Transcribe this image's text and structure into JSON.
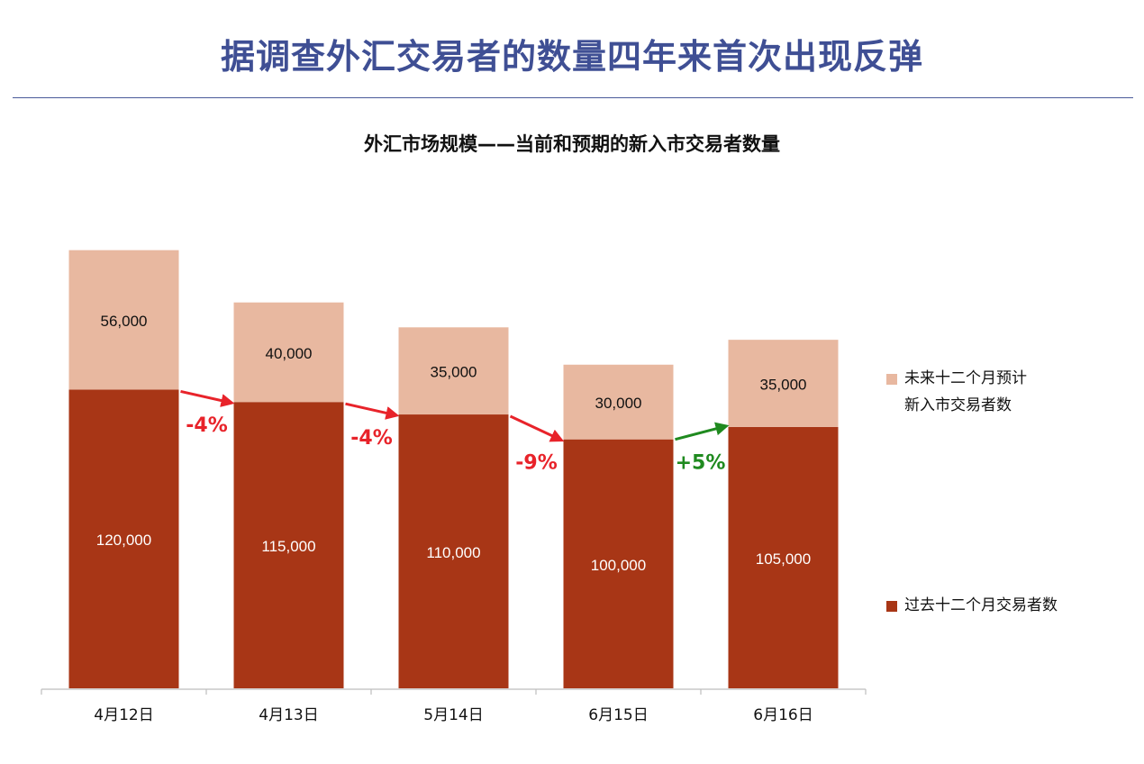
{
  "page": {
    "title": "据调查外汇交易者的数量四年来首次出现反弹"
  },
  "colors": {
    "title": "#3f4f94",
    "past_traders": "#a83616",
    "expected_new": "#e8b8a0",
    "decline_arrow": "#e8232a",
    "increase_arrow": "#1f8a1f"
  },
  "chart_data": {
    "type": "bar",
    "stacked": true,
    "title": "外汇市场规模——当前和预期的新入市交易者数量",
    "xlabel": "",
    "ylabel": "",
    "categories": [
      "4月12日",
      "4月13日",
      "5月14日",
      "6月15日",
      "6月16日"
    ],
    "series": [
      {
        "name": "过去十二个月交易者数",
        "values": [
          120000,
          115000,
          110000,
          100000,
          105000
        ],
        "labels": [
          "120,000",
          "115,000",
          "110,000",
          "100,000",
          "105,000"
        ]
      },
      {
        "name": "未来十二个月预计\n新入市交易者数",
        "values": [
          56000,
          40000,
          35000,
          30000,
          35000
        ],
        "labels": [
          "56,000",
          "40,000",
          "35,000",
          "30,000",
          "35,000"
        ]
      }
    ],
    "changes": [
      {
        "from": 0,
        "to": 1,
        "label": "-4%",
        "direction": "down"
      },
      {
        "from": 1,
        "to": 2,
        "label": "-4%",
        "direction": "down"
      },
      {
        "from": 2,
        "to": 3,
        "label": "-9%",
        "direction": "down"
      },
      {
        "from": 3,
        "to": 4,
        "label": "+5%",
        "direction": "up"
      }
    ],
    "ylim": [
      0,
      180000
    ],
    "grid": false,
    "legend": "right"
  }
}
